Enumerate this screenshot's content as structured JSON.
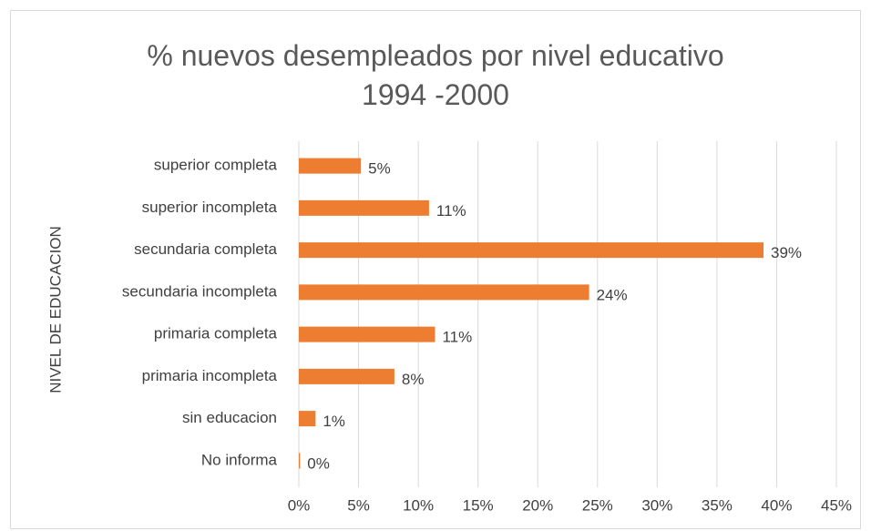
{
  "chart_data": {
    "type": "bar",
    "orientation": "horizontal",
    "title": "% nuevos desempleados por nivel educativo\n1994 -2000",
    "y_axis_label": "NIVEL DE EDUCACION",
    "categories": [
      "superior completa",
      "superior incompleta",
      "secundaria completa",
      "secundaria incompleta",
      "primaria completa",
      "primaria incompleta",
      "sin educacion",
      "No informa"
    ],
    "values": [
      5.2,
      10.9,
      38.9,
      24.3,
      11.4,
      8.0,
      1.4,
      0.1
    ],
    "value_labels": [
      "5%",
      "11%",
      "39%",
      "24%",
      "11%",
      "8%",
      "1%",
      "0%"
    ],
    "color": "#ed7d31",
    "xlim": [
      0,
      45
    ],
    "xticks": [
      {
        "value": 0,
        "label": "0%"
      },
      {
        "value": 5,
        "label": "5%"
      },
      {
        "value": 10,
        "label": "10%"
      },
      {
        "value": 15,
        "label": "15%"
      },
      {
        "value": 20,
        "label": "20%"
      },
      {
        "value": 25,
        "label": "25%"
      },
      {
        "value": 30,
        "label": "30%"
      },
      {
        "value": 35,
        "label": "35%"
      },
      {
        "value": 40,
        "label": "40%"
      },
      {
        "value": 45,
        "label": "45%"
      }
    ],
    "grid": true
  }
}
